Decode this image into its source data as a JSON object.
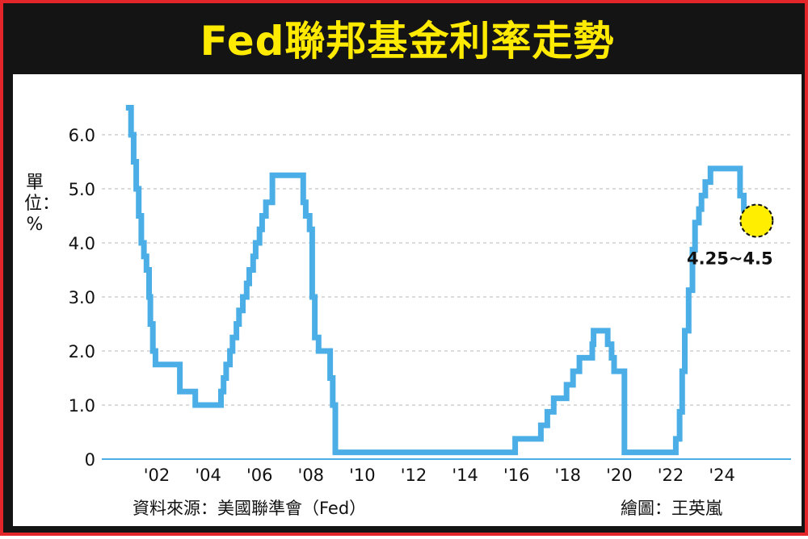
{
  "title": "Fed聯邦基金利率走勢",
  "unit_label": "單位：%",
  "source": "資料來源：美國聯準會（Fed）",
  "credit": "繪圖：王英嵐",
  "colors": {
    "frame": "#e3262a",
    "background": "#141414",
    "title": "#ffea00",
    "line": "#4baee6",
    "highlight": "#ffee00"
  },
  "chart_data": {
    "type": "line",
    "title": "Fed聯邦基金利率走勢",
    "xlabel": "",
    "ylabel": "單位：%",
    "ylim": [
      0,
      6.5
    ],
    "yticks": [
      0,
      1.0,
      2.0,
      3.0,
      4.0,
      5.0,
      6.0
    ],
    "ytick_labels": [
      "0",
      "1.0",
      "2.0",
      "3.0",
      "4.0",
      "5.0",
      "6.0"
    ],
    "xticks": [
      2002,
      2004,
      2006,
      2008,
      2010,
      2012,
      2014,
      2016,
      2018,
      2020,
      2022,
      2024
    ],
    "xtick_labels": [
      "'02",
      "'04",
      "'06",
      "'08",
      "'10",
      "'12",
      "'14",
      "'16",
      "'18",
      "'20",
      "'22",
      "'24"
    ],
    "grid": "horizontal dashed",
    "annotation": {
      "text": "4.25~4.5",
      "x": 2025.25,
      "y": 4.38
    },
    "series": [
      {
        "points": [
          [
            2000.8,
            6.5
          ],
          [
            2001.0,
            6.0
          ],
          [
            2001.1,
            5.5
          ],
          [
            2001.2,
            5.0
          ],
          [
            2001.3,
            4.5
          ],
          [
            2001.4,
            4.0
          ],
          [
            2001.5,
            3.75
          ],
          [
            2001.6,
            3.5
          ],
          [
            2001.7,
            3.0
          ],
          [
            2001.75,
            2.5
          ],
          [
            2001.85,
            2.0
          ],
          [
            2001.95,
            1.75
          ],
          [
            2002.9,
            1.25
          ],
          [
            2003.5,
            1.0
          ],
          [
            2004.5,
            1.25
          ],
          [
            2004.6,
            1.5
          ],
          [
            2004.7,
            1.75
          ],
          [
            2004.85,
            2.0
          ],
          [
            2004.95,
            2.25
          ],
          [
            2005.1,
            2.5
          ],
          [
            2005.2,
            2.75
          ],
          [
            2005.35,
            3.0
          ],
          [
            2005.5,
            3.25
          ],
          [
            2005.6,
            3.5
          ],
          [
            2005.75,
            3.75
          ],
          [
            2005.85,
            4.0
          ],
          [
            2006.0,
            4.25
          ],
          [
            2006.1,
            4.5
          ],
          [
            2006.25,
            4.75
          ],
          [
            2006.5,
            5.25
          ],
          [
            2007.7,
            4.75
          ],
          [
            2007.8,
            4.5
          ],
          [
            2007.95,
            4.25
          ],
          [
            2008.05,
            3.0
          ],
          [
            2008.15,
            2.25
          ],
          [
            2008.3,
            2.0
          ],
          [
            2008.75,
            1.5
          ],
          [
            2008.85,
            1.0
          ],
          [
            2008.95,
            0.125
          ],
          [
            2015.95,
            0.375
          ],
          [
            2016.95,
            0.625
          ],
          [
            2017.2,
            0.875
          ],
          [
            2017.45,
            1.125
          ],
          [
            2017.95,
            1.375
          ],
          [
            2018.2,
            1.625
          ],
          [
            2018.45,
            1.875
          ],
          [
            2018.95,
            2.125
          ],
          [
            2019.0,
            2.375
          ],
          [
            2019.55,
            2.125
          ],
          [
            2019.7,
            1.875
          ],
          [
            2019.8,
            1.625
          ],
          [
            2020.2,
            0.125
          ],
          [
            2022.2,
            0.375
          ],
          [
            2022.35,
            0.875
          ],
          [
            2022.45,
            1.625
          ],
          [
            2022.55,
            2.375
          ],
          [
            2022.7,
            3.125
          ],
          [
            2022.85,
            3.875
          ],
          [
            2022.95,
            4.375
          ],
          [
            2023.1,
            4.625
          ],
          [
            2023.2,
            4.875
          ],
          [
            2023.35,
            5.125
          ],
          [
            2023.55,
            5.375
          ],
          [
            2024.7,
            4.875
          ],
          [
            2024.85,
            4.625
          ],
          [
            2024.95,
            4.375
          ],
          [
            2025.4,
            4.375
          ]
        ]
      }
    ]
  }
}
